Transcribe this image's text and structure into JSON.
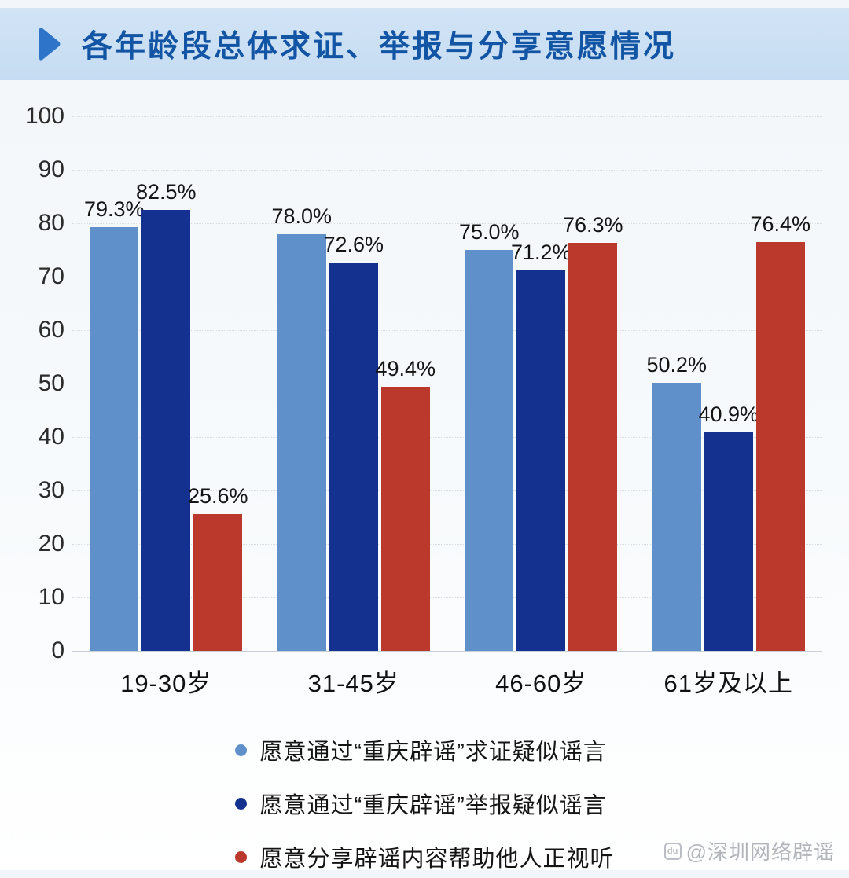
{
  "header": {
    "title": "各年龄段总体求证、举报与分享意愿情况",
    "accent_color": "#1355a5",
    "band_color": "#cbdff3",
    "marker_color": "#2e74c9"
  },
  "chart_data": {
    "type": "bar",
    "title": "各年龄段总体求证、举报与分享意愿情况",
    "categories": [
      "19-30岁",
      "31-45岁",
      "46-60岁",
      "61岁及以上"
    ],
    "series": [
      {
        "name": "愿意通过“重庆辟谣”求证疑似谣言",
        "color": "#5f90ca",
        "values": [
          79.3,
          78.0,
          75.0,
          50.2
        ]
      },
      {
        "name": "愿意通过“重庆辟谣”举报疑似谣言",
        "color": "#14318f",
        "values": [
          82.5,
          72.6,
          71.2,
          40.9
        ]
      },
      {
        "name": "愿意分享辟谣内容帮助他人正视听",
        "color": "#bb392c",
        "values": [
          25.6,
          49.4,
          76.3,
          76.4
        ]
      }
    ],
    "value_label_format": "percent_one_decimal",
    "xlabel": "",
    "ylabel": "",
    "ylim": [
      0,
      100
    ],
    "yticks": [
      0,
      10,
      20,
      30,
      40,
      50,
      60,
      70,
      80,
      90,
      100
    ],
    "grid": "horizontal-dotted",
    "legend_position": "bottom"
  },
  "watermark": {
    "icon": "du",
    "text": "@深圳网络辟谣"
  }
}
